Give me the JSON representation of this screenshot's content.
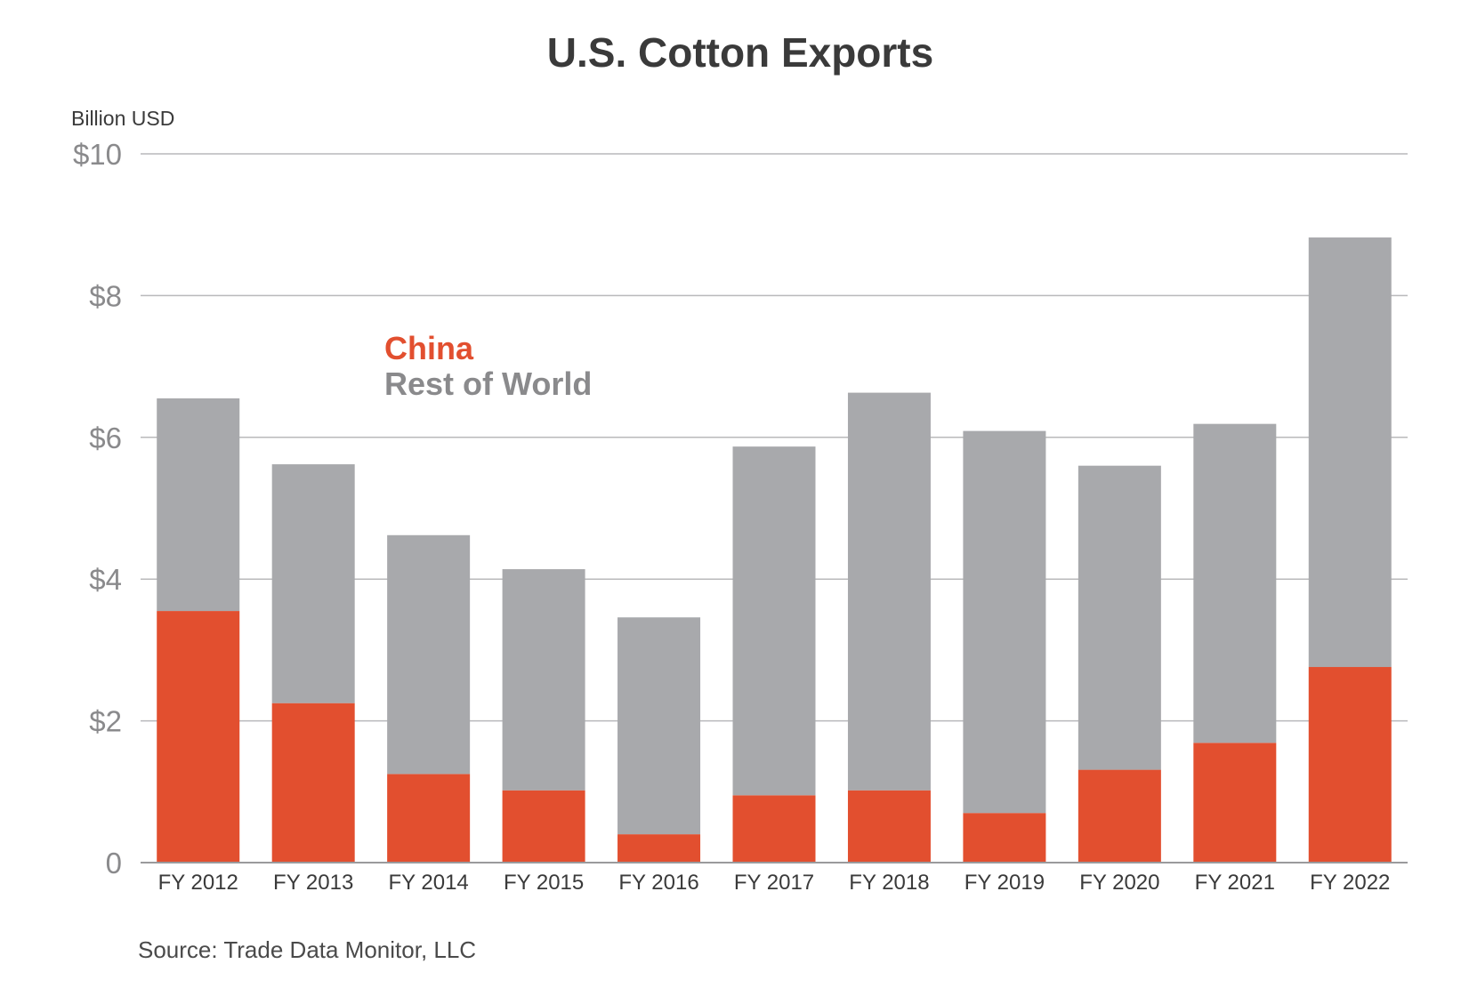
{
  "chart_data": {
    "type": "bar",
    "stacked": true,
    "title": "U.S. Cotton Exports",
    "ylabel": "Billion USD",
    "xlabel": "",
    "ylim": [
      0,
      10
    ],
    "yticks": [
      0,
      2,
      4,
      6,
      8,
      10
    ],
    "ytick_labels": [
      "0",
      "$2",
      "$4",
      "$6",
      "$8",
      "$10"
    ],
    "categories": [
      "FY 2012",
      "FY 2013",
      "FY 2014",
      "FY 2015",
      "FY 2016",
      "FY 2017",
      "FY 2018",
      "FY 2019",
      "FY 2020",
      "FY 2021",
      "FY 2022"
    ],
    "series": [
      {
        "name": "China",
        "color": "#e24f2f",
        "values": [
          3.55,
          2.25,
          1.25,
          1.02,
          0.4,
          0.95,
          1.02,
          0.7,
          1.31,
          1.69,
          2.76
        ]
      },
      {
        "name": "Rest of World",
        "color": "#a8a9ac",
        "values": [
          3.0,
          3.37,
          3.37,
          3.12,
          3.06,
          4.92,
          5.61,
          5.39,
          4.29,
          4.5,
          6.06
        ]
      }
    ],
    "grid": true,
    "legend_position": "upper-left inside plot",
    "source": "Source: Trade Data Monitor, LLC"
  }
}
